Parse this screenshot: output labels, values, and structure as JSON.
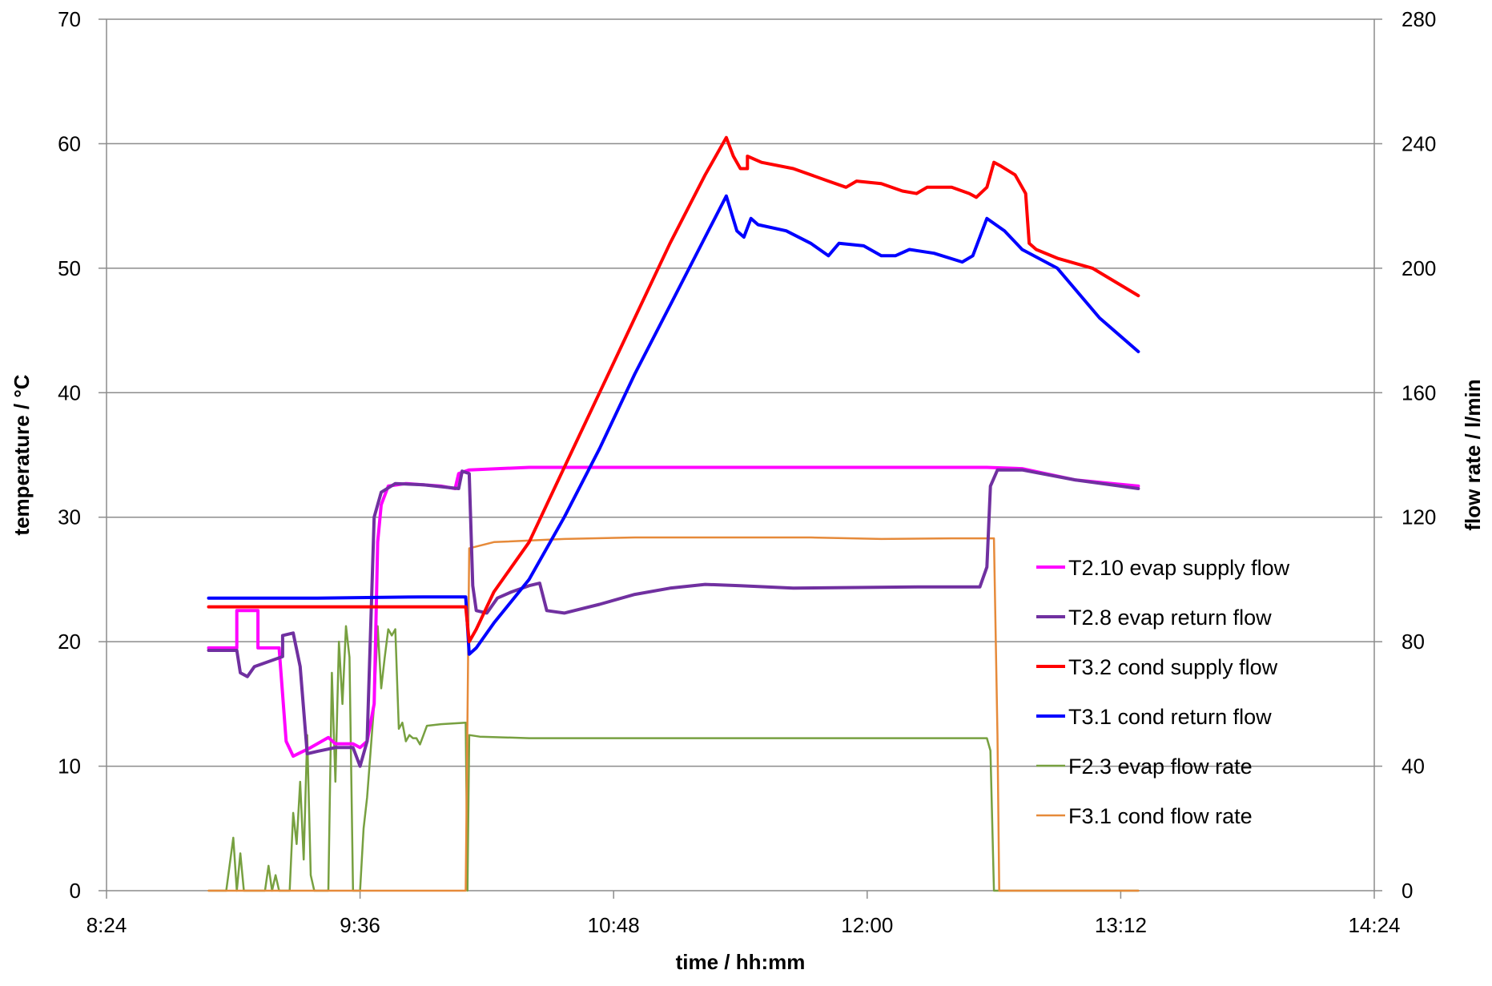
{
  "chart_data": {
    "type": "line",
    "title": "",
    "xlabel": "time / hh:mm",
    "ylabel_left": "temperature / °C",
    "ylabel_right": "flow rate / l/min",
    "x_unit": "minutes after 8:24",
    "xlim": [
      0,
      360
    ],
    "x_ticks": [
      0,
      72,
      144,
      216,
      288,
      360
    ],
    "x_tick_labels": [
      "8:24",
      "9:36",
      "10:48",
      "12:00",
      "13:12",
      "14:24"
    ],
    "ylim_left": [
      0,
      70
    ],
    "y_ticks_left": [
      0,
      10,
      20,
      30,
      40,
      50,
      60,
      70
    ],
    "y_tick_labels_left": [
      "0",
      "10",
      "20",
      "30",
      "40",
      "50",
      "60",
      "70"
    ],
    "ylim_right": [
      0,
      280
    ],
    "y_ticks_right": [
      0,
      40,
      80,
      120,
      160,
      200,
      240,
      280
    ],
    "y_tick_labels_right": [
      "0",
      "40",
      "80",
      "120",
      "160",
      "200",
      "240",
      "280"
    ],
    "grid": "horizontal",
    "legend_position": "lower-right",
    "series": [
      {
        "name": "T2.10 evap supply flow",
        "axis": "left",
        "color": "#ff00ff",
        "width": 4,
        "points": [
          [
            29,
            19.5
          ],
          [
            37,
            19.5
          ],
          [
            37,
            22.5
          ],
          [
            43,
            22.5
          ],
          [
            43,
            19.5
          ],
          [
            48,
            19.5
          ],
          [
            49,
            19.5
          ],
          [
            51,
            12
          ],
          [
            53,
            10.8
          ],
          [
            58,
            11.5
          ],
          [
            63,
            12.3
          ],
          [
            65,
            11.8
          ],
          [
            70,
            11.8
          ],
          [
            72,
            11.5
          ],
          [
            74,
            12
          ],
          [
            76,
            15
          ],
          [
            77,
            28
          ],
          [
            78,
            31
          ],
          [
            80,
            32.5
          ],
          [
            85,
            32.7
          ],
          [
            95,
            32.5
          ],
          [
            99,
            32.3
          ],
          [
            100,
            33.5
          ],
          [
            103,
            33.8
          ],
          [
            120,
            34
          ],
          [
            250,
            34
          ],
          [
            260,
            33.9
          ],
          [
            275,
            33
          ],
          [
            293,
            32.5
          ]
        ]
      },
      {
        "name": "T2.8 evap return flow",
        "axis": "left",
        "color": "#7030a0",
        "width": 4,
        "points": [
          [
            29,
            19.3
          ],
          [
            37,
            19.3
          ],
          [
            38,
            17.5
          ],
          [
            40,
            17.2
          ],
          [
            42,
            18
          ],
          [
            50,
            18.8
          ],
          [
            50,
            20.5
          ],
          [
            53,
            20.7
          ],
          [
            55,
            18
          ],
          [
            57,
            11
          ],
          [
            60,
            11.2
          ],
          [
            65,
            11.5
          ],
          [
            70,
            11.5
          ],
          [
            72,
            10
          ],
          [
            74,
            12
          ],
          [
            76,
            30
          ],
          [
            78,
            32
          ],
          [
            82,
            32.7
          ],
          [
            90,
            32.6
          ],
          [
            100,
            32.3
          ],
          [
            101,
            33.7
          ],
          [
            103,
            33.5
          ],
          [
            104,
            24.5
          ],
          [
            105,
            22.5
          ],
          [
            108,
            22.3
          ],
          [
            111,
            23.5
          ],
          [
            115,
            24
          ],
          [
            120,
            24.5
          ],
          [
            123,
            24.7
          ],
          [
            125,
            22.5
          ],
          [
            130,
            22.3
          ],
          [
            140,
            23
          ],
          [
            150,
            23.8
          ],
          [
            160,
            24.3
          ],
          [
            170,
            24.6
          ],
          [
            180,
            24.5
          ],
          [
            195,
            24.3
          ],
          [
            230,
            24.4
          ],
          [
            248,
            24.4
          ],
          [
            250,
            26
          ],
          [
            251,
            32.5
          ],
          [
            253,
            33.8
          ],
          [
            260,
            33.8
          ],
          [
            275,
            33
          ],
          [
            293,
            32.3
          ]
        ]
      },
      {
        "name": "T3.2 cond supply flow",
        "axis": "left",
        "color": "#ff0000",
        "width": 4,
        "points": [
          [
            29,
            22.8
          ],
          [
            80,
            22.8
          ],
          [
            102,
            22.8
          ],
          [
            103,
            20
          ],
          [
            105,
            21
          ],
          [
            110,
            24
          ],
          [
            120,
            28
          ],
          [
            130,
            34
          ],
          [
            140,
            40
          ],
          [
            150,
            46
          ],
          [
            160,
            52
          ],
          [
            170,
            57.5
          ],
          [
            176,
            60.5
          ],
          [
            178,
            59
          ],
          [
            180,
            58
          ],
          [
            182,
            58
          ],
          [
            182,
            59
          ],
          [
            186,
            58.5
          ],
          [
            195,
            58
          ],
          [
            205,
            57
          ],
          [
            210,
            56.5
          ],
          [
            213,
            57
          ],
          [
            220,
            56.8
          ],
          [
            226,
            56.2
          ],
          [
            230,
            56
          ],
          [
            233,
            56.5
          ],
          [
            240,
            56.5
          ],
          [
            245,
            56
          ],
          [
            247,
            55.7
          ],
          [
            250,
            56.5
          ],
          [
            252,
            58.5
          ],
          [
            254,
            58.2
          ],
          [
            258,
            57.5
          ],
          [
            261,
            56
          ],
          [
            262,
            52
          ],
          [
            264,
            51.5
          ],
          [
            270,
            50.8
          ],
          [
            280,
            50
          ],
          [
            293,
            47.8
          ]
        ]
      },
      {
        "name": "T3.1 cond return flow",
        "axis": "left",
        "color": "#0000ff",
        "width": 4,
        "points": [
          [
            29,
            23.5
          ],
          [
            60,
            23.5
          ],
          [
            90,
            23.6
          ],
          [
            102,
            23.6
          ],
          [
            103,
            19
          ],
          [
            105,
            19.5
          ],
          [
            110,
            21.5
          ],
          [
            120,
            25
          ],
          [
            130,
            30
          ],
          [
            140,
            35.5
          ],
          [
            150,
            41.5
          ],
          [
            160,
            47
          ],
          [
            170,
            52.5
          ],
          [
            176,
            55.8
          ],
          [
            179,
            53
          ],
          [
            181,
            52.5
          ],
          [
            183,
            54
          ],
          [
            185,
            53.5
          ],
          [
            193,
            53
          ],
          [
            200,
            52
          ],
          [
            205,
            51
          ],
          [
            208,
            52
          ],
          [
            215,
            51.8
          ],
          [
            220,
            51
          ],
          [
            224,
            51
          ],
          [
            228,
            51.5
          ],
          [
            235,
            51.2
          ],
          [
            243,
            50.5
          ],
          [
            246,
            51
          ],
          [
            248,
            52.5
          ],
          [
            250,
            54
          ],
          [
            255,
            53
          ],
          [
            260,
            51.5
          ],
          [
            270,
            50
          ],
          [
            282,
            46
          ],
          [
            293,
            43.3
          ]
        ]
      },
      {
        "name": "F2.3 evap flow rate",
        "axis": "right",
        "color": "#77a040",
        "width": 2.5,
        "points": [
          [
            29,
            0
          ],
          [
            34,
            0
          ],
          [
            36,
            17
          ],
          [
            37,
            0
          ],
          [
            38,
            12
          ],
          [
            39,
            0
          ],
          [
            45,
            0
          ],
          [
            46,
            8
          ],
          [
            47,
            0
          ],
          [
            48,
            5
          ],
          [
            49,
            0
          ],
          [
            52,
            0
          ],
          [
            53,
            25
          ],
          [
            54,
            15
          ],
          [
            55,
            35
          ],
          [
            56,
            10
          ],
          [
            57,
            50
          ],
          [
            58,
            5
          ],
          [
            59,
            0
          ],
          [
            63,
            0
          ],
          [
            64,
            70
          ],
          [
            65,
            35
          ],
          [
            66,
            80
          ],
          [
            67,
            60
          ],
          [
            68,
            85
          ],
          [
            69,
            75
          ],
          [
            70,
            0
          ],
          [
            72,
            0
          ],
          [
            73,
            20
          ],
          [
            74,
            30
          ],
          [
            75,
            45
          ],
          [
            76,
            60
          ],
          [
            77,
            85
          ],
          [
            78,
            65
          ],
          [
            79,
            75
          ],
          [
            80,
            84
          ],
          [
            81,
            82
          ],
          [
            82,
            84
          ],
          [
            83,
            52
          ],
          [
            84,
            54
          ],
          [
            85,
            48
          ],
          [
            86,
            50
          ],
          [
            87,
            49
          ],
          [
            88,
            49
          ],
          [
            89,
            47
          ],
          [
            90,
            50
          ],
          [
            91,
            53
          ],
          [
            95,
            53.5
          ],
          [
            102,
            54
          ],
          [
            102.5,
            0
          ],
          [
            103,
            50
          ],
          [
            106,
            49.5
          ],
          [
            120,
            49
          ],
          [
            180,
            49
          ],
          [
            250,
            49
          ],
          [
            251,
            45
          ],
          [
            252,
            0
          ],
          [
            293,
            0
          ]
        ]
      },
      {
        "name": "F3.1 cond flow rate",
        "axis": "right",
        "color": "#e68a3a",
        "width": 2.5,
        "points": [
          [
            29,
            0
          ],
          [
            102,
            0
          ],
          [
            103,
            110
          ],
          [
            110,
            112
          ],
          [
            130,
            113
          ],
          [
            150,
            113.5
          ],
          [
            180,
            113.5
          ],
          [
            200,
            113.5
          ],
          [
            220,
            113
          ],
          [
            240,
            113.2
          ],
          [
            252,
            113.2
          ],
          [
            253,
            50
          ],
          [
            253.5,
            0
          ],
          [
            293,
            0
          ]
        ]
      }
    ]
  }
}
